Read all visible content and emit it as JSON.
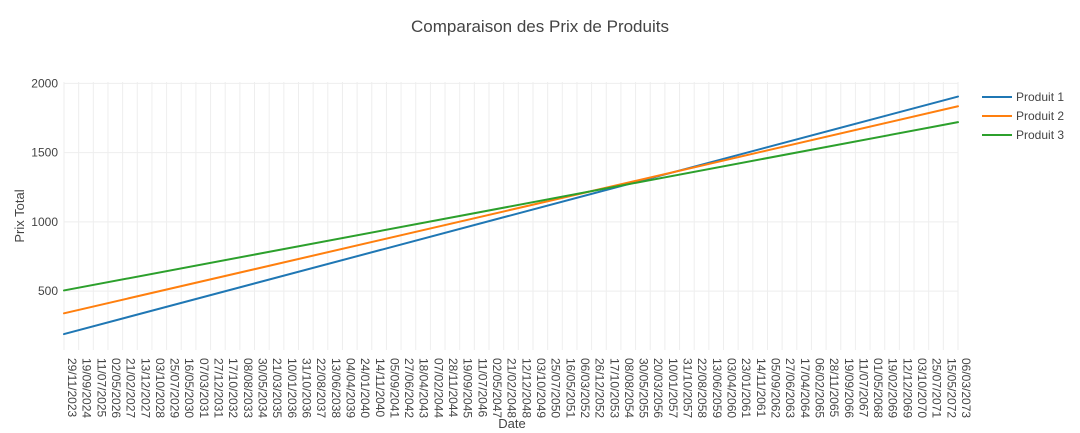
{
  "chart_data": {
    "type": "line",
    "title": "Comparaison des Prix de Produits",
    "xlabel": "Date",
    "ylabel": "Prix Total",
    "x_start_label": "29/11/2023",
    "x_end_label": "06/03/2073",
    "x_tick_labels": [
      "29/11/2023",
      "19/09/2024",
      "11/07/2025",
      "02/05/2026",
      "21/02/2027",
      "13/12/2027",
      "03/10/2028",
      "25/07/2029",
      "16/05/2030",
      "07/03/2031",
      "27/12/2031",
      "17/10/2032",
      "08/08/2033",
      "30/05/2034",
      "21/03/2035",
      "10/01/2036",
      "31/10/2036",
      "22/08/2037",
      "13/06/2038",
      "04/04/2039",
      "24/01/2040",
      "14/11/2040",
      "05/09/2041",
      "27/06/2042",
      "18/04/2043",
      "07/02/2044",
      "28/11/2044",
      "19/09/2045",
      "11/07/2046",
      "02/05/2047",
      "21/02/2048",
      "12/12/2048",
      "03/10/2049",
      "25/07/2050",
      "16/05/2051",
      "06/03/2052",
      "26/12/2052",
      "17/10/2053",
      "08/08/2054",
      "30/05/2055",
      "20/03/2056",
      "10/01/2057",
      "31/10/2057",
      "22/08/2058",
      "13/06/2059",
      "03/04/2060",
      "23/01/2061",
      "14/11/2061",
      "05/09/2062",
      "27/06/2063",
      "17/04/2064",
      "06/02/2065",
      "28/11/2065",
      "19/09/2066",
      "11/07/2067",
      "01/05/2068",
      "19/02/2069",
      "12/12/2069",
      "03/10/2070",
      "25/07/2071",
      "15/05/2072",
      "06/03/2073"
    ],
    "y_ticks": [
      500,
      1000,
      1500,
      2000
    ],
    "y_range": [
      75,
      2010
    ],
    "grid": true,
    "legend_position": "top-right",
    "series": [
      {
        "name": "Produit 1",
        "color": "#1f77b4",
        "start": 190,
        "end": 1905
      },
      {
        "name": "Produit 2",
        "color": "#ff7f0e",
        "start": 340,
        "end": 1835
      },
      {
        "name": "Produit 3",
        "color": "#2ca02c",
        "start": 505,
        "end": 1720
      }
    ]
  }
}
